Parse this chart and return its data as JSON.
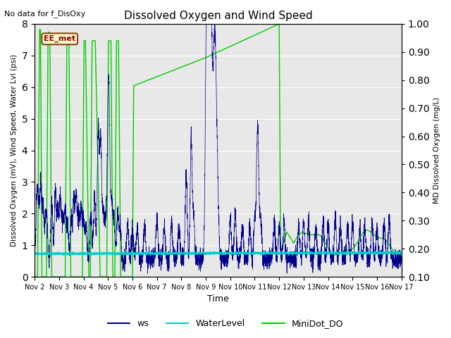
{
  "title": "Dissolved Oxygen and Wind Speed",
  "subtitle": "No data for f_DisOxy",
  "xlabel": "Time",
  "ylabel_left": "Dissolved Oxygen (mV), Wind Speed, Water Lvl (psi)",
  "ylabel_right": "MD Dissolved Oxygen (mg/L)",
  "ylim_left": [
    0.0,
    8.0
  ],
  "ylim_right": [
    0.1,
    1.0
  ],
  "annotation_box": "EE_met",
  "bg_color": "#e8e8e8",
  "ws_color": "#00008B",
  "wl_color": "#00CCCC",
  "do_color": "#00CC00",
  "legend_labels": [
    "ws",
    "WaterLevel",
    "MiniDot_DO"
  ],
  "xtick_labels": [
    "Nov 2",
    "Nov 3",
    "Nov 4",
    "Nov 5",
    "Nov 6",
    "Nov 7",
    "Nov 8",
    "Nov 9",
    "Nov 10",
    "Nov 11",
    "Nov 12",
    "Nov 13",
    "Nov 14",
    "Nov 15",
    "Nov 16",
    "Nov 17"
  ],
  "yticks_left": [
    0.0,
    1.0,
    2.0,
    3.0,
    4.0,
    5.0,
    6.0,
    7.0,
    8.0
  ],
  "yticks_right_vals": [
    0.1,
    0.2,
    0.3,
    0.4,
    0.5,
    0.6,
    0.7,
    0.8,
    0.9,
    1.0
  ],
  "yticks_right_labels": [
    "0.10",
    "0.20",
    "0.30",
    "0.40",
    "0.50",
    "0.60",
    "0.70",
    "0.80",
    "0.90",
    "1.00"
  ]
}
